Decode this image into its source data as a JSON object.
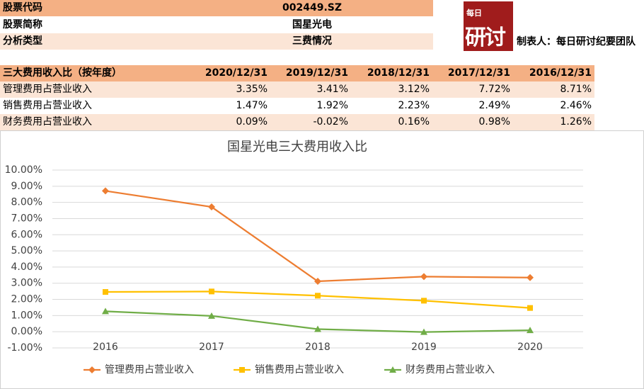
{
  "header": {
    "rows": [
      [
        "股票代码",
        "002449.SZ"
      ],
      [
        "股票简称",
        "国星光电"
      ],
      [
        "分析类型",
        "三费情况"
      ]
    ],
    "logo": [
      "每日",
      "研讨"
    ],
    "author": "制表人：每日研讨纪要团队"
  },
  "table": {
    "columns": [
      "三大费用收入比（按年度）",
      "2020/12/31",
      "2019/12/31",
      "2018/12/31",
      "2017/12/31",
      "2016/12/31"
    ],
    "rows": [
      [
        "管理费用占营业收入",
        "3.35%",
        "3.41%",
        "3.12%",
        "7.72%",
        "8.71%"
      ],
      [
        "销售费用占营业收入",
        "1.47%",
        "1.92%",
        "2.23%",
        "2.49%",
        "2.46%"
      ],
      [
        "财务费用占营业收入",
        "0.09%",
        "-0.02%",
        "0.16%",
        "0.98%",
        "1.26%"
      ]
    ]
  },
  "chart_data": {
    "type": "line",
    "title": "国星光电三大费用收入比",
    "categories": [
      "2016",
      "2017",
      "2018",
      "2019",
      "2020"
    ],
    "series": [
      {
        "name": "管理费用占营业收入",
        "color": "#ed7d31",
        "marker": "diamond",
        "values": [
          8.71,
          7.72,
          3.12,
          3.41,
          3.35
        ]
      },
      {
        "name": "销售费用占营业收入",
        "color": "#ffc000",
        "marker": "square",
        "values": [
          2.46,
          2.49,
          2.23,
          1.92,
          1.47
        ]
      },
      {
        "name": "财务费用占营业收入",
        "color": "#70ad47",
        "marker": "triangle",
        "values": [
          1.26,
          0.98,
          0.16,
          -0.02,
          0.09
        ]
      }
    ],
    "ylim": [
      -1,
      10
    ],
    "yticks": [
      {
        "value": -1,
        "label": "-1.00%"
      },
      {
        "value": 0,
        "label": "0.00%"
      },
      {
        "value": 1,
        "label": "1.00%"
      },
      {
        "value": 2,
        "label": "2.00%"
      },
      {
        "value": 3,
        "label": "3.00%"
      },
      {
        "value": 4,
        "label": "4.00%"
      },
      {
        "value": 5,
        "label": "5.00%"
      },
      {
        "value": 6,
        "label": "6.00%"
      },
      {
        "value": 7,
        "label": "7.00%"
      },
      {
        "value": 8,
        "label": "8.00%"
      },
      {
        "value": 9,
        "label": "9.00%"
      },
      {
        "value": 10,
        "label": "10.00%"
      }
    ],
    "grid": true,
    "legend": "bottom"
  }
}
